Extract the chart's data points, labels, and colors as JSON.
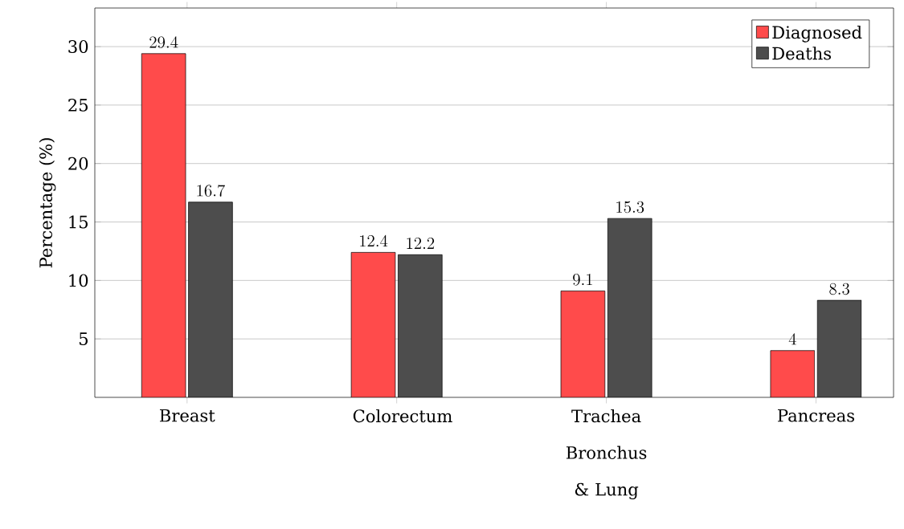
{
  "chart_data": {
    "type": "bar",
    "ylabel": "Percentage (%)",
    "categories": [
      "Breast",
      "Colorectum",
      "Trachea Bronchus & Lung",
      "Pancreas"
    ],
    "series": [
      {
        "name": "Diagnosed",
        "color": "#ff4b4b",
        "values": [
          29.4,
          12.4,
          9.1,
          4
        ]
      },
      {
        "name": "Deaths",
        "color": "#4d4d4d",
        "values": [
          16.7,
          12.2,
          15.3,
          8.3
        ]
      }
    ],
    "ylim": [
      0,
      33.3
    ],
    "yticks": [
      5,
      10,
      15,
      20,
      25,
      30
    ],
    "grid": "y",
    "legend": "top right",
    "data_labels": true
  }
}
